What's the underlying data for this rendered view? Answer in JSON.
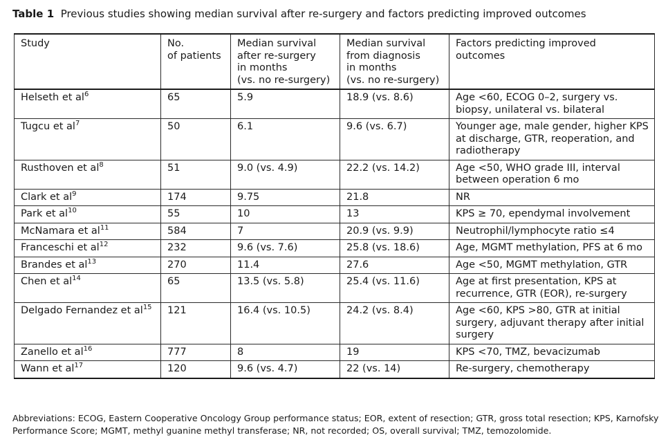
{
  "caption": {
    "label": "Table 1",
    "text": "Previous studies showing median survival after re-surgery and factors predicting improved outcomes"
  },
  "table": {
    "headers": [
      "Study",
      "No.\nof patients",
      "Median survival\nafter re-surgery\nin months\n(vs. no re-surgery)",
      "Median survival\nfrom diagnosis\nin months\n(vs. no re-surgery)",
      "Factors predicting improved\noutcomes"
    ],
    "rows": [
      {
        "study": "Helseth et al",
        "ref": "6",
        "patients": "65",
        "after": "5.9",
        "diagnosis": "18.9 (vs. 8.6)",
        "factors": "Age <60, ECOG 0–2, surgery vs.\nbiopsy, unilateral vs. bilateral"
      },
      {
        "study": "Tugcu et al",
        "ref": "7",
        "patients": "50",
        "after": "6.1",
        "diagnosis": "9.6 (vs. 6.7)",
        "factors": "Younger age, male gender, higher KPS\nat discharge, GTR, reoperation, and\nradiotherapy"
      },
      {
        "study": "Rusthoven et al",
        "ref": "8",
        "patients": "51",
        "after": "9.0 (vs. 4.9)",
        "diagnosis": "22.2 (vs. 14.2)",
        "factors": "Age <50, WHO grade III, interval\nbetween operation 6 mo"
      },
      {
        "study": "Clark et al",
        "ref": "9",
        "patients": "174",
        "after": "9.75",
        "diagnosis": "21.8",
        "factors": "NR"
      },
      {
        "study": "Park et al",
        "ref": "10",
        "patients": "55",
        "after": "10",
        "diagnosis": "13",
        "factors": "KPS ≥ 70, ependymal involvement"
      },
      {
        "study": "McNamara et al",
        "ref": "11",
        "patients": "584",
        "after": "7",
        "diagnosis": "20.9 (vs. 9.9)",
        "factors": "Neutrophil/lymphocyte ratio ≤4"
      },
      {
        "study": "Franceschi et al",
        "ref": "12",
        "patients": "232",
        "after": "9.6 (vs. 7.6)",
        "diagnosis": "25.8 (vs. 18.6)",
        "factors": "Age, MGMT methylation, PFS at 6 mo"
      },
      {
        "study": "Brandes et al",
        "ref": "13",
        "patients": "270",
        "after": "11.4",
        "diagnosis": "27.6",
        "factors": "Age <50, MGMT methylation, GTR"
      },
      {
        "study": "Chen et al",
        "ref": "14",
        "patients": "65",
        "after": "13.5 (vs. 5.8)",
        "diagnosis": "25.4 (vs. 11.6)",
        "factors": "Age at first presentation, KPS at\nrecurrence, GTR (EOR), re-surgery"
      },
      {
        "study": "Delgado Fernandez et al",
        "ref": "15",
        "patients": "121",
        "after": "16.4 (vs. 10.5)",
        "diagnosis": "24.2 (vs. 8.4)",
        "factors": "Age <60, KPS >80, GTR at initial\nsurgery, adjuvant therapy after initial\nsurgery"
      },
      {
        "study": "Zanello et al",
        "ref": "16",
        "patients": "777",
        "after": "8",
        "diagnosis": "19",
        "factors": "KPS <70, TMZ, bevacizumab"
      },
      {
        "study": "Wann et al",
        "ref": "17",
        "patients": "120",
        "after": "9.6 (vs. 4.7)",
        "diagnosis": "22 (vs. 14)",
        "factors": "Re-surgery, chemotherapy"
      }
    ]
  },
  "footnote": "Abbreviations: ECOG, Eastern Cooperative Oncology Group performance status; EOR, extent of resection; GTR, gross total resection; KPS, Karnofsky Performance Score; MGMT, methyl guanine methyl transferase; NR, not recorded; OS, overall survival; TMZ, temozolomide."
}
